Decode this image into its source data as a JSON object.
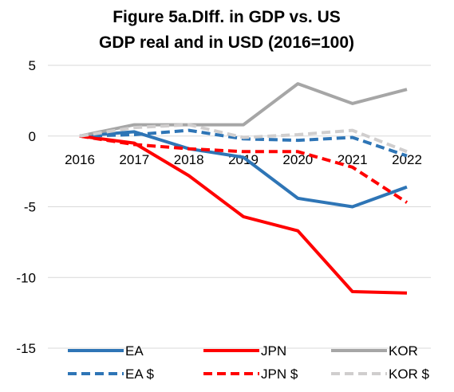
{
  "chart_data": {
    "type": "line",
    "title_lines": [
      "Figure 5a.DIff. in GDP vs. US",
      "GDP real and in USD (2016=100)"
    ],
    "categories": [
      "2016",
      "2017",
      "2018",
      "2019",
      "2020",
      "2021",
      "2022"
    ],
    "ylim": [
      -15,
      5
    ],
    "yticks": [
      5,
      0,
      -5,
      -10,
      -15
    ],
    "grid": true,
    "legend_position": "bottom",
    "series": [
      {
        "name": "EA",
        "color": "#2e75b6",
        "dash": "solid",
        "values": [
          0,
          0.3,
          -0.9,
          -1.5,
          -4.4,
          -5.0,
          -3.6
        ]
      },
      {
        "name": "JPN",
        "color": "#ff0000",
        "dash": "solid",
        "values": [
          0,
          -0.5,
          -2.8,
          -5.7,
          -6.7,
          -11.0,
          -11.1
        ]
      },
      {
        "name": "KOR",
        "color": "#a6a6a6",
        "dash": "solid",
        "values": [
          0,
          0.8,
          0.8,
          0.8,
          3.7,
          2.3,
          3.3
        ]
      },
      {
        "name": "EA $",
        "color": "#2e75b6",
        "dash": "dashed",
        "values": [
          0,
          0.1,
          0.4,
          -0.2,
          -0.3,
          -0.1,
          -1.4
        ]
      },
      {
        "name": "JPN $",
        "color": "#ff0000",
        "dash": "dashed",
        "values": [
          0,
          -0.6,
          -0.9,
          -1.1,
          -1.1,
          -2.2,
          -4.7
        ]
      },
      {
        "name": "KOR $",
        "color": "#d0cece",
        "dash": "dashed",
        "values": [
          0,
          0.6,
          0.8,
          -0.1,
          0.1,
          0.4,
          -1.1
        ]
      }
    ]
  }
}
